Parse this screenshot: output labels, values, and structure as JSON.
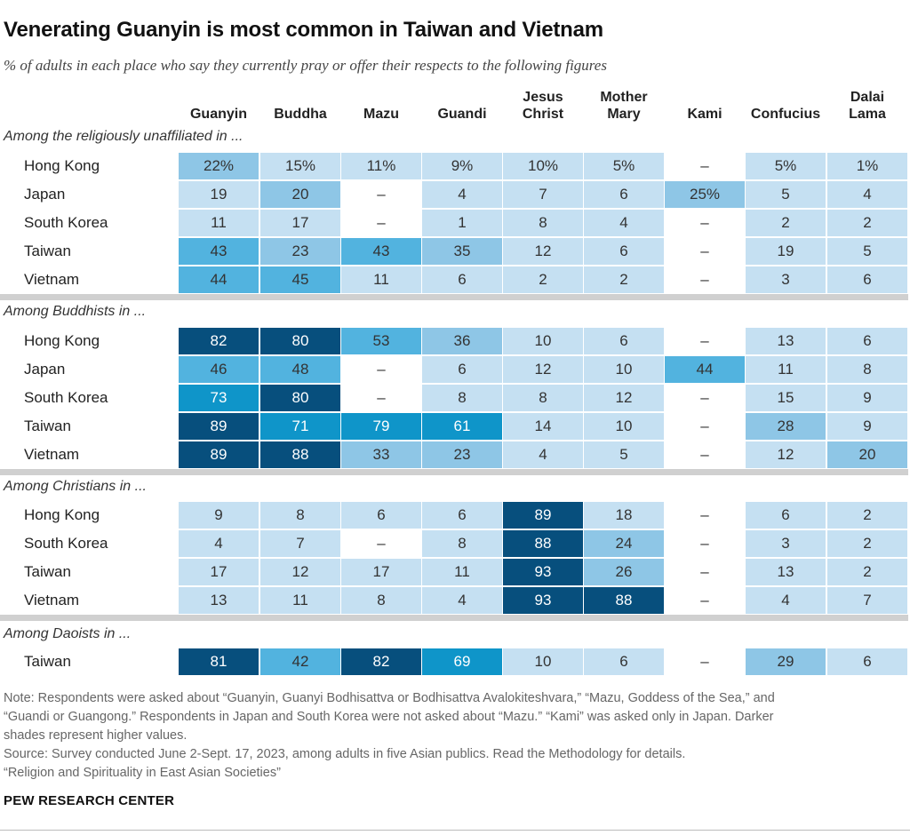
{
  "title": "Venerating Guanyin is most common in Taiwan and Vietnam",
  "subtitle": "% of adults in each place who say they currently pray or offer their respects to the following figures",
  "columns": [
    {
      "line1": "Guanyin"
    },
    {
      "line1": "Buddha"
    },
    {
      "line1": "Mazu"
    },
    {
      "line1": "Guandi"
    },
    {
      "line1": "Jesus",
      "line2": "Christ"
    },
    {
      "line1": "Mother",
      "line2": "Mary"
    },
    {
      "line1": "Kami"
    },
    {
      "line1": "Confucius"
    },
    {
      "line1": "Dalai",
      "line2": "Lama"
    }
  ],
  "colors": {
    "blank": "#ffffff",
    "lvl0": "#c5e0f2",
    "lvl1": "#8ec6e6",
    "lvl2": "#52b3df",
    "lvl3": "#0f95c9",
    "lvl4": "#074f7d",
    "text_dark": "#333333",
    "text_light": "#ffffff"
  },
  "chart_data": {
    "type": "table",
    "title": "Venerating Guanyin is most common in Taiwan and Vietnam",
    "categories": [
      "Guanyin",
      "Buddha",
      "Mazu",
      "Guandi",
      "Jesus Christ",
      "Mother Mary",
      "Kami",
      "Confucius",
      "Dalai Lama"
    ],
    "sections": [
      {
        "label": "Among the religiously unaffiliated in ...",
        "rows": [
          {
            "name": "Hong Kong",
            "values": [
              "22%",
              "15%",
              "11%",
              "9%",
              "10%",
              "5%",
              "–",
              "5%",
              "1%"
            ],
            "shades": [
              1,
              0,
              0,
              0,
              0,
              0,
              "none",
              0,
              0
            ]
          },
          {
            "name": "Japan",
            "values": [
              "19",
              "20",
              "–",
              "4",
              "7",
              "6",
              "25%",
              "5",
              "4"
            ],
            "shades": [
              0,
              1,
              "blank",
              0,
              0,
              0,
              1,
              0,
              0
            ]
          },
          {
            "name": "South Korea",
            "values": [
              "11",
              "17",
              "–",
              "1",
              "8",
              "4",
              "–",
              "2",
              "2"
            ],
            "shades": [
              0,
              0,
              "blank",
              0,
              0,
              0,
              "none",
              0,
              0
            ]
          },
          {
            "name": "Taiwan",
            "values": [
              "43",
              "23",
              "43",
              "35",
              "12",
              "6",
              "–",
              "19",
              "5"
            ],
            "shades": [
              2,
              1,
              2,
              1,
              0,
              0,
              "none",
              0,
              0
            ]
          },
          {
            "name": "Vietnam",
            "values": [
              "44",
              "45",
              "11",
              "6",
              "2",
              "2",
              "–",
              "3",
              "6"
            ],
            "shades": [
              2,
              2,
              0,
              0,
              0,
              0,
              "none",
              0,
              0
            ]
          }
        ]
      },
      {
        "label": "Among Buddhists in ...",
        "rows": [
          {
            "name": "Hong Kong",
            "values": [
              "82",
              "80",
              "53",
              "36",
              "10",
              "6",
              "–",
              "13",
              "6"
            ],
            "shades": [
              4,
              4,
              2,
              1,
              0,
              0,
              "none",
              0,
              0
            ]
          },
          {
            "name": "Japan",
            "values": [
              "46",
              "48",
              "–",
              "6",
              "12",
              "10",
              "44",
              "11",
              "8"
            ],
            "shades": [
              2,
              2,
              "blank",
              0,
              0,
              0,
              2,
              0,
              0
            ]
          },
          {
            "name": "South Korea",
            "values": [
              "73",
              "80",
              "–",
              "8",
              "8",
              "12",
              "–",
              "15",
              "9"
            ],
            "shades": [
              3,
              4,
              "blank",
              0,
              0,
              0,
              "none",
              0,
              0
            ]
          },
          {
            "name": "Taiwan",
            "values": [
              "89",
              "71",
              "79",
              "61",
              "14",
              "10",
              "–",
              "28",
              "9"
            ],
            "shades": [
              4,
              3,
              3,
              3,
              0,
              0,
              "none",
              1,
              0
            ]
          },
          {
            "name": "Vietnam",
            "values": [
              "89",
              "88",
              "33",
              "23",
              "4",
              "5",
              "–",
              "12",
              "20"
            ],
            "shades": [
              4,
              4,
              1,
              1,
              0,
              0,
              "none",
              0,
              1
            ]
          }
        ]
      },
      {
        "label": "Among Christians in ...",
        "rows": [
          {
            "name": "Hong Kong",
            "values": [
              "9",
              "8",
              "6",
              "6",
              "89",
              "18",
              "–",
              "6",
              "2"
            ],
            "shades": [
              0,
              0,
              0,
              0,
              4,
              0,
              "none",
              0,
              0
            ]
          },
          {
            "name": "South Korea",
            "values": [
              "4",
              "7",
              "–",
              "8",
              "88",
              "24",
              "–",
              "3",
              "2"
            ],
            "shades": [
              0,
              0,
              "blank",
              0,
              4,
              1,
              "none",
              0,
              0
            ]
          },
          {
            "name": "Taiwan",
            "values": [
              "17",
              "12",
              "17",
              "11",
              "93",
              "26",
              "–",
              "13",
              "2"
            ],
            "shades": [
              0,
              0,
              0,
              0,
              4,
              1,
              "none",
              0,
              0
            ]
          },
          {
            "name": "Vietnam",
            "values": [
              "13",
              "11",
              "8",
              "4",
              "93",
              "88",
              "–",
              "4",
              "7"
            ],
            "shades": [
              0,
              0,
              0,
              0,
              4,
              4,
              "none",
              0,
              0
            ]
          }
        ]
      },
      {
        "label": "Among Daoists in ...",
        "rows": [
          {
            "name": "Taiwan",
            "values": [
              "81",
              "42",
              "82",
              "69",
              "10",
              "6",
              "–",
              "29",
              "6"
            ],
            "shades": [
              4,
              2,
              4,
              3,
              0,
              0,
              "none",
              1,
              0
            ]
          }
        ]
      }
    ]
  },
  "notes": [
    "Note: Respondents were asked about “Guanyin, Guanyi Bodhisattva or Bodhisattva Avalokiteshvara,” “Mazu, Goddess of the Sea,” and",
    "“Guandi or Guangong.” Respondents in Japan and South Korea were not asked about “Mazu.” “Kami” was asked only in Japan. Darker",
    "shades represent higher values.",
    "Source: Survey conducted June 2-Sept. 17, 2023, among adults in five Asian publics. Read the Methodology for details.",
    "“Religion and Spirituality in East Asian Societies”"
  ],
  "brand": "PEW RESEARCH CENTER"
}
